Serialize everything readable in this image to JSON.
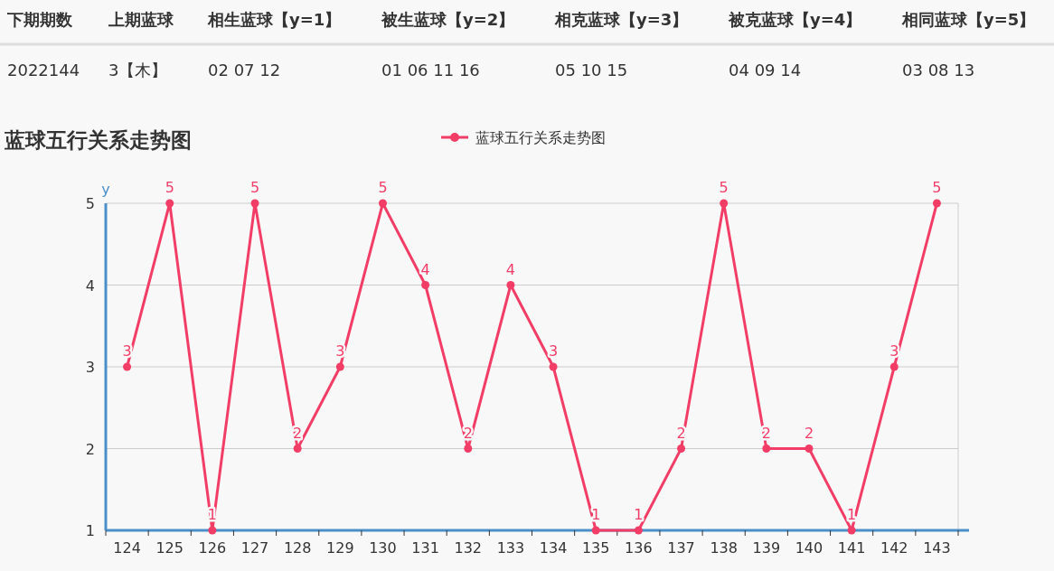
{
  "chart_data": [
    {
      "type": "other",
      "categories": [
        "下期期数",
        "上期蓝球",
        "相生蓝球【y=1】",
        "被生蓝球【y=2】",
        "相克蓝球【y=3】",
        "被克蓝球【y=4】",
        "相同蓝球【y=5】"
      ],
      "annotations": [
        "2022144",
        "3【木】",
        "02 07 12",
        "01 06 11 16",
        "05 10 15",
        "04 09 14",
        "03 08 13"
      ]
    },
    {
      "type": "line",
      "title": "蓝球五行关系走势图",
      "ylabel": "y",
      "categories": [
        "124",
        "125",
        "126",
        "127",
        "128",
        "129",
        "130",
        "131",
        "132",
        "133",
        "134",
        "135",
        "136",
        "137",
        "138",
        "139",
        "140",
        "141",
        "142",
        "143"
      ],
      "series": [
        {
          "name": "蓝球五行关系走势图",
          "color": "#f23d67",
          "values": [
            3,
            5,
            1,
            5,
            2,
            3,
            5,
            4,
            2,
            4,
            3,
            1,
            1,
            2,
            5,
            2,
            2,
            1,
            3,
            5
          ]
        }
      ],
      "ylim": [
        1,
        5
      ],
      "yticks": [
        1,
        2,
        3,
        4,
        5
      ],
      "grid": "y",
      "legend": "top",
      "marker": "circle",
      "line_style": "solid",
      "data_labels": true
    }
  ]
}
